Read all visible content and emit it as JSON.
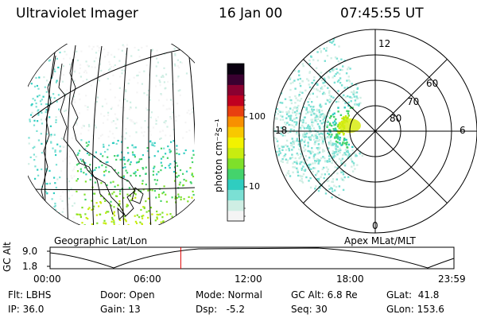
{
  "header": {
    "instrument": "Ultraviolet Imager",
    "date": "16 Jan 00",
    "time": "07:45:55 UT"
  },
  "colorbar": {
    "label": "photon cm⁻²s⁻¹",
    "ticks": [
      {
        "label": "100",
        "value": 100
      },
      {
        "label": "10",
        "value": 10
      }
    ],
    "colors": [
      "#f4f4f4",
      "#cfeee4",
      "#7be0d4",
      "#2fcdc0",
      "#44d36c",
      "#7ee02a",
      "#c8ec10",
      "#f2f200",
      "#f8c800",
      "#f89000",
      "#e84010",
      "#c00020",
      "#8a0030",
      "#3a0030",
      "#0a0010"
    ]
  },
  "left_panel": {
    "caption": "Geographic Lat/Lon"
  },
  "right_panel": {
    "caption": "Apex MLat/MLT",
    "mlt_labels": {
      "top": "12",
      "left": "18",
      "right": "6",
      "bottom": "0"
    },
    "lat_labels": [
      "60",
      "70",
      "80"
    ]
  },
  "timeline": {
    "axis_label": "GC Alt",
    "y_ticks": [
      "9.0",
      "1.8"
    ],
    "x_ticks": [
      "00:00",
      "06:00",
      "12:00",
      "18:00",
      "23:59"
    ],
    "current_time_hours": 7.765
  },
  "footer": {
    "col1": [
      "Flt: LBHS",
      "IP: 36.0"
    ],
    "col2": [
      "Door: Open",
      "Gain: 13"
    ],
    "col3": [
      "Mode: Normal",
      "Dsp:   -5.2"
    ],
    "col4": [
      "GC Alt: 6.8 Re",
      "Seq: 30"
    ],
    "col5": [
      "GLat:  41.8",
      "GLon: 153.6"
    ]
  }
}
